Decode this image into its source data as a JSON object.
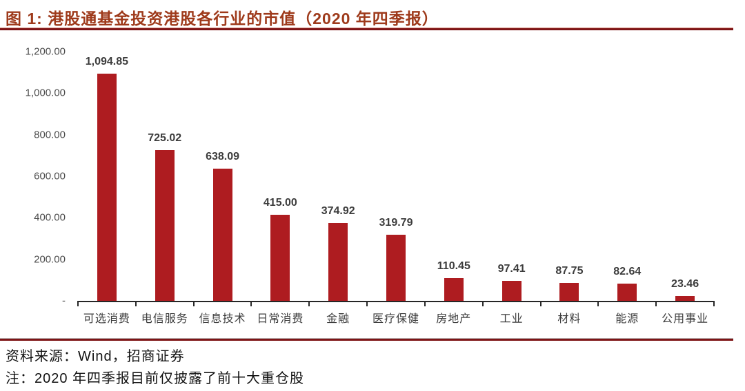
{
  "header": {
    "title": "图 1: 港股通基金投资港股各行业的市值（2020 年四季报）"
  },
  "colors": {
    "bar": "#AE1C20",
    "title": "#9E3A1B",
    "rule": "#7E1416",
    "axis": "#262626"
  },
  "chart_data": {
    "type": "bar",
    "title": "港股通基金投资港股各行业的市值（2020 年四季报）",
    "categories": [
      "可选消费",
      "电信服务",
      "信息技术",
      "日常消费",
      "金融",
      "医疗保健",
      "房地产",
      "工业",
      "材料",
      "能源",
      "公用事业"
    ],
    "values": [
      1094.85,
      725.02,
      638.09,
      415.0,
      374.92,
      319.79,
      110.45,
      97.41,
      87.75,
      82.64,
      23.46
    ],
    "value_labels": [
      "1,094.85",
      "725.02",
      "638.09",
      "415.00",
      "374.92",
      "319.79",
      "110.45",
      "97.41",
      "87.75",
      "82.64",
      "23.46"
    ],
    "y_ticks": [
      {
        "value": 1200,
        "label": "1,200.00"
      },
      {
        "value": 1000,
        "label": "1,000.00"
      },
      {
        "value": 800,
        "label": "800.00"
      },
      {
        "value": 600,
        "label": "600.00"
      },
      {
        "value": 400,
        "label": "400.00"
      },
      {
        "value": 200,
        "label": "200.00"
      },
      {
        "value": 0,
        "label": "-"
      }
    ],
    "xlabel": "",
    "ylabel": "",
    "ylim": [
      0,
      1200
    ],
    "grid": false,
    "legend": "none"
  },
  "footer": {
    "source": "资料来源：Wind，招商证券",
    "note": "注：2020 年四季报目前仅披露了前十大重仓股"
  }
}
